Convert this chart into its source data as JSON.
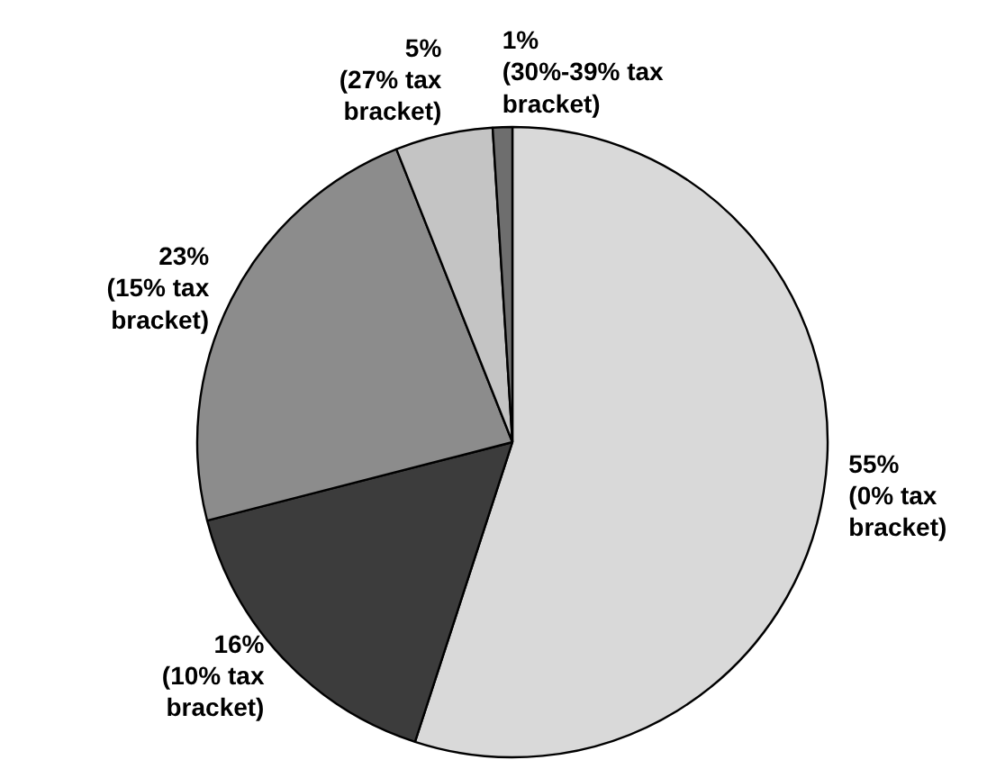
{
  "chart_data": {
    "type": "pie",
    "categories": [
      "(0% tax bracket)",
      "(10% tax bracket)",
      "(15% tax bracket)",
      "(27% tax bracket)",
      "(30%-39% tax bracket)"
    ],
    "values": [
      55,
      16,
      23,
      5,
      1
    ],
    "colors": [
      "#d9d9d9",
      "#3c3c3c",
      "#8c8c8c",
      "#c4c4c4",
      "#6e6e6e"
    ],
    "value_labels": [
      "55%",
      "16%",
      "23%",
      "5%",
      "1%"
    ]
  }
}
